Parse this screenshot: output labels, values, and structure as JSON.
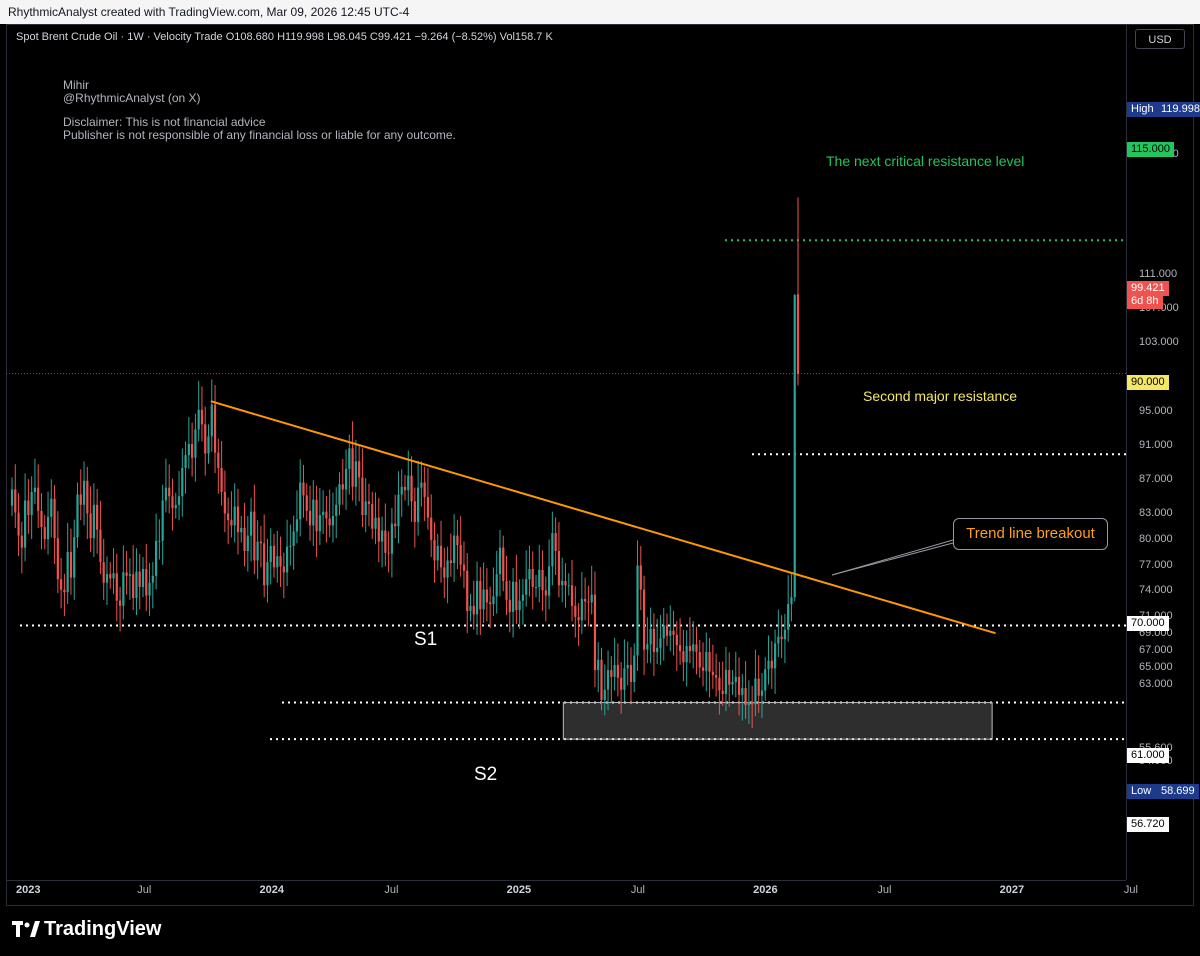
{
  "header": {
    "text": "RhythmicAnalyst created with TradingView.com, Mar 09, 2026 12:45 UTC-4"
  },
  "legend": {
    "symbol": "Spot Brent Crude Oil · 1W · Velocity Trade",
    "o_key": "O",
    "o_val": "108.680",
    "h_key": "H",
    "h_val": "119.998",
    "l_key": "L",
    "l_val": "98.045",
    "c_key": "C",
    "c_val": "99.421",
    "chg": "−9.264 (−8.52%)",
    "vol_key": "Vol",
    "vol_val": "158.7 K"
  },
  "notes": {
    "author": "Mihir",
    "handle": "@RhythmicAnalyst (on X)",
    "disclaimer1": "Disclaimer: This is not financial advice",
    "disclaimer2": "Publisher is not responsible of any financial loss or liable for any outcome."
  },
  "currency": "USD",
  "colors": {
    "up": "#26a69a",
    "down": "#ef5350",
    "trend": "#ff9800",
    "green": "#22c55e",
    "yellow": "#f5e663",
    "white": "#ffffff"
  },
  "annotations": {
    "resistance_next": "The next critical resistance level",
    "resistance_second": "Second major resistance",
    "trend_breakout": "Trend line breakout",
    "s1": "S1",
    "s2": "S2"
  },
  "price_tags": {
    "high_label": "High",
    "high_value": "119.998",
    "r115": "115.000",
    "last_price": "99.421",
    "countdown": "6d 8h",
    "r90": "90.000",
    "s70": "70.000",
    "s61": "61.000",
    "low_label": "Low",
    "low_value": "58.699",
    "s5672": "56.720"
  },
  "footer": {
    "brand": "TradingView"
  },
  "chart_data": {
    "type": "candlestick",
    "title": "Spot Brent Crude Oil · 1W · Velocity Trade",
    "price_ticks": [
      "125.000",
      "111.000",
      "107.000",
      "103.000",
      "95.000",
      "91.000",
      "87.000",
      "83.000",
      "80.000",
      "77.000",
      "74.000",
      "71.000",
      "69.000",
      "67.000",
      "65.000",
      "63.000",
      "55.600",
      "54.000"
    ],
    "time_ticks": [
      "2023",
      "Jul",
      "2024",
      "Jul",
      "2025",
      "Jul",
      "2026",
      "Jul",
      "2027",
      "Jul"
    ],
    "year_ticks": [
      "2023",
      "2024",
      "2025",
      "2026",
      "2027"
    ],
    "levels": [
      115,
      90,
      70,
      61,
      56.72
    ],
    "trendline": {
      "from": {
        "date": "2023-10-15",
        "price": 96.2
      },
      "to": {
        "date": "2026-12-20",
        "price": 69.1
      }
    },
    "box_s2": {
      "from_date": "2025-03-20",
      "to_date": "2026-12-15",
      "top": 61.0,
      "bottom": 56.72
    },
    "weekly_closes": [
      85.9,
      83.2,
      80.5,
      79.1,
      84.6,
      82.9,
      85.6,
      86.1,
      83.4,
      81.5,
      80.1,
      82.7,
      84.8,
      80.2,
      75.4,
      74.2,
      73.9,
      78.6,
      75.6,
      80.3,
      85.3,
      84.1,
      86.9,
      83.1,
      80.2,
      84.1,
      81.2,
      77.4,
      75.0,
      76.0,
      75.5,
      76.1,
      72.9,
      72.3,
      76.2,
      75.8,
      76.0,
      73.2,
      76.3,
      74.5,
      76.6,
      73.5,
      75.0,
      75.8,
      79.9,
      79.9,
      84.6,
      86.1,
      85.1,
      83.7,
      84.1,
      85.1,
      88.4,
      89.9,
      91.2,
      89.6,
      92.9,
      95.2,
      93.5,
      90.1,
      92.1,
      95.8,
      90.2,
      88.4,
      85.6,
      83.1,
      82.3,
      81.7,
      83.9,
      80.9,
      81.4,
      78.7,
      80.5,
      83.3,
      77.6,
      79.8,
      79.6,
      74.7,
      77.4,
      79.3,
      76.8,
      78.1,
      76.9,
      76.2,
      79.2,
      79.3,
      81.0,
      82.4,
      86.7,
      85.2,
      83.4,
      81.7,
      84.7,
      81.0,
      82.9,
      83.3,
      82.5,
      81.7,
      82.8,
      84.1,
      86.5,
      85.9,
      88.3,
      90.7,
      86.2,
      89.2,
      87.3,
      82.9,
      84.5,
      84.2,
      81.3,
      82.6,
      79.8,
      81.1,
      78.5,
      78.4,
      81.9,
      81.6,
      85.3,
      86.2,
      85.8,
      87.5,
      84.5,
      82.1,
      86.1,
      86.7,
      85.0,
      82.6,
      80.0,
      77.6,
      79.3,
      76.8,
      75.6,
      77.6,
      77.3,
      80.5,
      79.4,
      77.1,
      76.4,
      71.7,
      72.3,
      71.3,
      75.2,
      71.9,
      74.2,
      72.7,
      72.5,
      73.4,
      76.0,
      79.1,
      75.2,
      73.0,
      71.6,
      75.1,
      71.8,
      72.9,
      73.6,
      75.4,
      76.6,
      74.5,
      74.5,
      76.5,
      74.1,
      73.5,
      76.9,
      80.8,
      78.7,
      74.7,
      75.2,
      74.7,
      74.7,
      72.3,
      71.0,
      70.6,
      73.1,
      72.8,
      72.7,
      73.6,
      64.8,
      66.0,
      61.3,
      62.5,
      64.8,
      64.0,
      65.4,
      63.9,
      62.5,
      65.0,
      65.4,
      63.4,
      66.5,
      77.0,
      74.2,
      67.2,
      67.8,
      69.6,
      66.9,
      67.4,
      68.5,
      70.0,
      68.8,
      69.4,
      68.9,
      67.7,
      67.0,
      65.7,
      67.6,
      67.0,
      67.8,
      66.9,
      65.1,
      64.7,
      66.9,
      64.6,
      64.2,
      63.9,
      62.4,
      62.0,
      64.8,
      63.1,
      63.4,
      64.0,
      61.9,
      62.7,
      60.7,
      61.1,
      60.8,
      63.8,
      61.8,
      62.4,
      64.9,
      65.9,
      65.0,
      67.9,
      68.7,
      68.4,
      69.5,
      72.5,
      73.3,
      92.7,
      99.4
    ]
  }
}
